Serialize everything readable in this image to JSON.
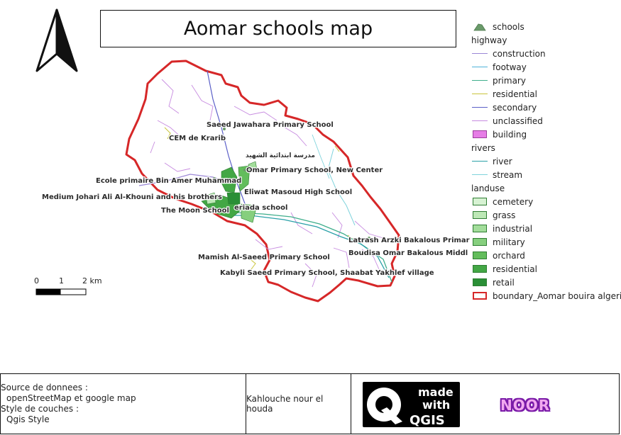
{
  "title": "Aomar schools map",
  "legend": {
    "schools": "schools",
    "highway_header": "highway",
    "highway": [
      {
        "label": "construction",
        "color": "#9b87d6"
      },
      {
        "label": "footway",
        "color": "#4fb3d9"
      },
      {
        "label": "primary",
        "color": "#3fae8c"
      },
      {
        "label": "residential",
        "color": "#c9c43a"
      },
      {
        "label": "secondary",
        "color": "#5b5fc7"
      },
      {
        "label": "unclassified",
        "color": "#c78be0"
      }
    ],
    "building": "building",
    "rivers_header": "rivers",
    "rivers": [
      {
        "label": "river",
        "color": "#2aa0a8"
      },
      {
        "label": "stream",
        "color": "#7fd3dc"
      }
    ],
    "landuse_header": "landuse",
    "landuse": [
      {
        "label": "cemetery",
        "color": "#d7f2d3"
      },
      {
        "label": "grass",
        "color": "#bde8b6"
      },
      {
        "label": "industrial",
        "color": "#a3dd9b"
      },
      {
        "label": "military",
        "color": "#86cf7e"
      },
      {
        "label": "orchard",
        "color": "#63bd5c"
      },
      {
        "label": "residential",
        "color": "#43a745"
      },
      {
        "label": "retail",
        "color": "#2a8f36"
      }
    ],
    "boundary": "boundary_Aomar bouira algeria"
  },
  "map_labels": [
    "Saeed Jawahara Primary School",
    "CEM de Krarib",
    "مدرسة ابتدائية الشهيد",
    "Omar Primary School, New Center",
    "Ecole primaire Bin Amer Muhammad",
    "Eliwat Masoud High School",
    "Medium Johari Ali Al-Khouni and his brothers",
    "The Moon School",
    "eriada school",
    "Latrash Arzki Bakalous Primar",
    "Boudisa Omar Bakalous Middl",
    "Mamish Al-Saeed Primary School",
    "Kabyli Saeed Primary School, Shaabat Yakhlef village"
  ],
  "scalebar": {
    "ticks": [
      "0",
      "1",
      "2 km"
    ]
  },
  "footer": {
    "source_title": "Source de donnees :",
    "source_value": "openStreetMap et google map",
    "style_title": "Style de couches :",
    "style_value": "Qgis Style",
    "author": "Kahlouche nour el houda",
    "qgis_made": "made",
    "qgis_with": "with",
    "qgis_name": "QGIS",
    "noor": "NOOR"
  },
  "colors": {
    "boundary": "#d62728",
    "school": "#6a9a6a",
    "building": "#e67de6"
  }
}
